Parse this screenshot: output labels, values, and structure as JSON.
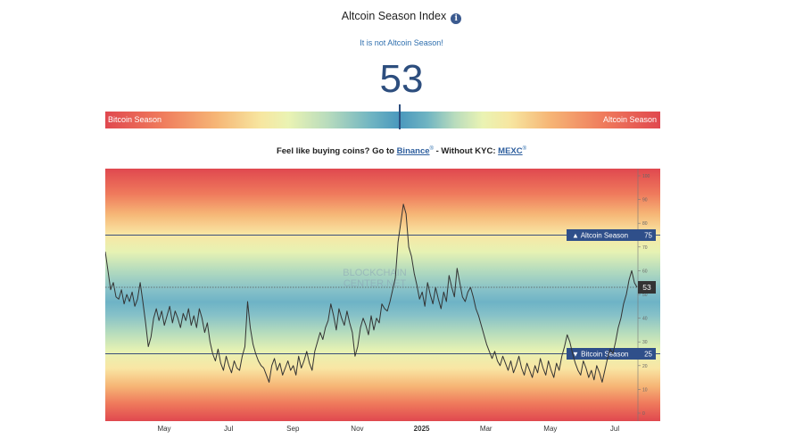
{
  "header": {
    "title": "Altcoin Season Index",
    "info_icon": "info-icon",
    "status_text": "It is not Altcoin Season!",
    "index_value": "53"
  },
  "gauge": {
    "left_label": "Bitcoin Season",
    "right_label": "Altcoin Season"
  },
  "promo": {
    "prefix": "Feel like buying coins? Go to",
    "binance_label": "Binance",
    "middle": "- Without KYC:",
    "mexc_label": "MEXC",
    "sup_mark": "®"
  },
  "watermark": [
    "BLOCKCHAIN",
    "CENTER.NET"
  ],
  "chart_data": {
    "type": "line",
    "ylim": [
      0,
      100
    ],
    "y_ticks": [
      "0",
      "10",
      "20",
      "30",
      "40",
      "50",
      "60",
      "70",
      "80",
      "90",
      "100"
    ],
    "x_labels": [
      "May",
      "Jul",
      "Sep",
      "Nov",
      "2025",
      "Mar",
      "May",
      "Jul"
    ],
    "reference_lines": [
      {
        "label": "Altcoin Season",
        "arrow": "▲",
        "value": 75
      },
      {
        "label": "Bitcoin Season",
        "arrow": "▼",
        "value": 25
      }
    ],
    "current_value": 53,
    "colors": {
      "line": "#333333",
      "reference_line": "#3a4f7a",
      "reference_badge": "#2f4f8a",
      "current_badge": "#333333"
    },
    "series": [
      {
        "values": [
          68,
          60,
          52,
          55,
          49,
          48,
          52,
          46,
          50,
          47,
          51,
          45,
          48,
          55,
          47,
          38,
          28,
          32,
          40,
          44,
          39,
          43,
          37,
          41,
          45,
          38,
          43,
          40,
          36,
          42,
          39,
          44,
          37,
          41,
          36,
          44,
          40,
          34,
          38,
          30,
          25,
          22,
          27,
          21,
          18,
          24,
          20,
          17,
          22,
          19,
          18,
          24,
          28,
          47,
          36,
          29,
          25,
          22,
          20,
          19,
          16,
          13,
          20,
          23,
          18,
          21,
          16,
          19,
          22,
          18,
          20,
          16,
          24,
          19,
          22,
          26,
          21,
          18,
          26,
          30,
          34,
          31,
          36,
          39,
          46,
          41,
          35,
          44,
          40,
          37,
          43,
          38,
          34,
          24,
          28,
          36,
          40,
          37,
          33,
          41,
          35,
          40,
          38,
          46,
          44,
          43,
          47,
          52,
          57,
          72,
          80,
          88,
          84,
          70,
          66,
          59,
          54,
          48,
          51,
          45,
          55,
          50,
          46,
          53,
          48,
          44,
          51,
          47,
          58,
          53,
          49,
          61,
          55,
          49,
          47,
          51,
          53,
          49,
          44,
          41,
          37,
          33,
          29,
          26,
          23,
          26,
          22,
          20,
          24,
          21,
          18,
          22,
          17,
          20,
          24,
          19,
          16,
          21,
          18,
          15,
          20,
          17,
          23,
          19,
          16,
          22,
          18,
          15,
          21,
          18,
          24,
          28,
          33,
          30,
          25,
          21,
          18,
          16,
          22,
          19,
          15,
          18,
          14,
          20,
          17,
          13,
          18,
          23,
          27,
          25,
          30,
          36,
          40,
          46,
          50,
          56,
          60,
          55,
          53
        ]
      }
    ]
  }
}
